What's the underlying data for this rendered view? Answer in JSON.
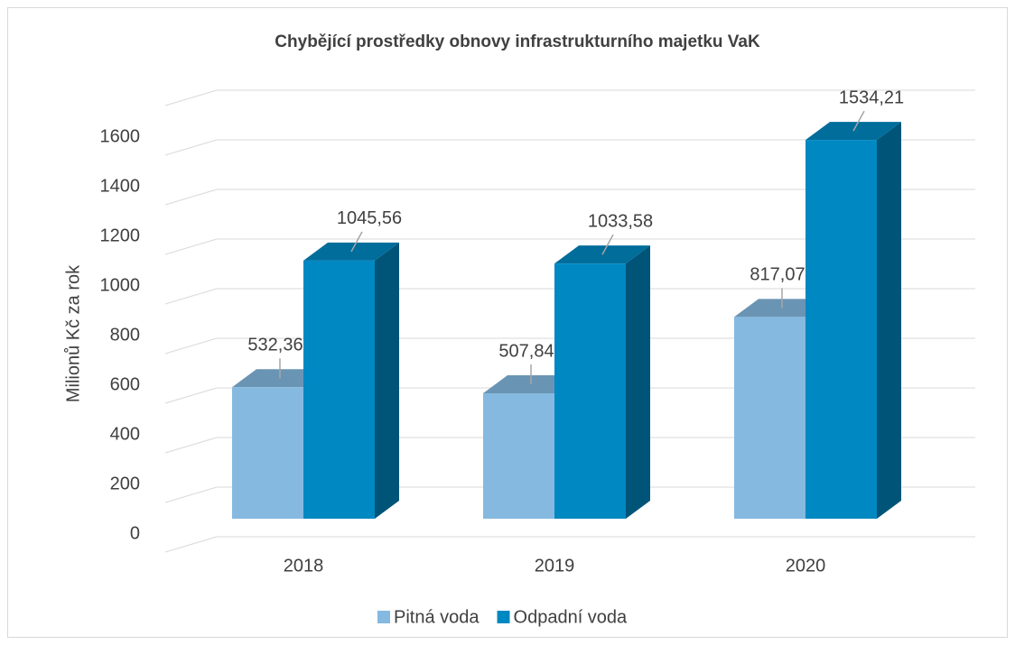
{
  "chart_data": {
    "type": "bar3d",
    "title": "Chybějící prostředky obnovy infrastrukturního majetku VaK",
    "y_label": "Milionů Kč za rok",
    "categories": [
      "2018",
      "2019",
      "2020"
    ],
    "series": [
      {
        "name": "Pitná voda",
        "color": "#85b9e0",
        "values": [
          532.36,
          507.84,
          817.07
        ],
        "value_labels": [
          "532,36",
          "507,84",
          "817,07"
        ]
      },
      {
        "name": "Odpadní voda",
        "color": "#0088c2",
        "values": [
          1045.56,
          1033.58,
          1534.21
        ],
        "value_labels": [
          "1045,56",
          "1033,58",
          "1534,21"
        ]
      }
    ],
    "ylim": [
      0,
      1800
    ],
    "yticks": [
      0,
      200,
      400,
      600,
      800,
      1000,
      1200,
      1400,
      1600
    ],
    "grid": true,
    "legend": "bottom"
  }
}
